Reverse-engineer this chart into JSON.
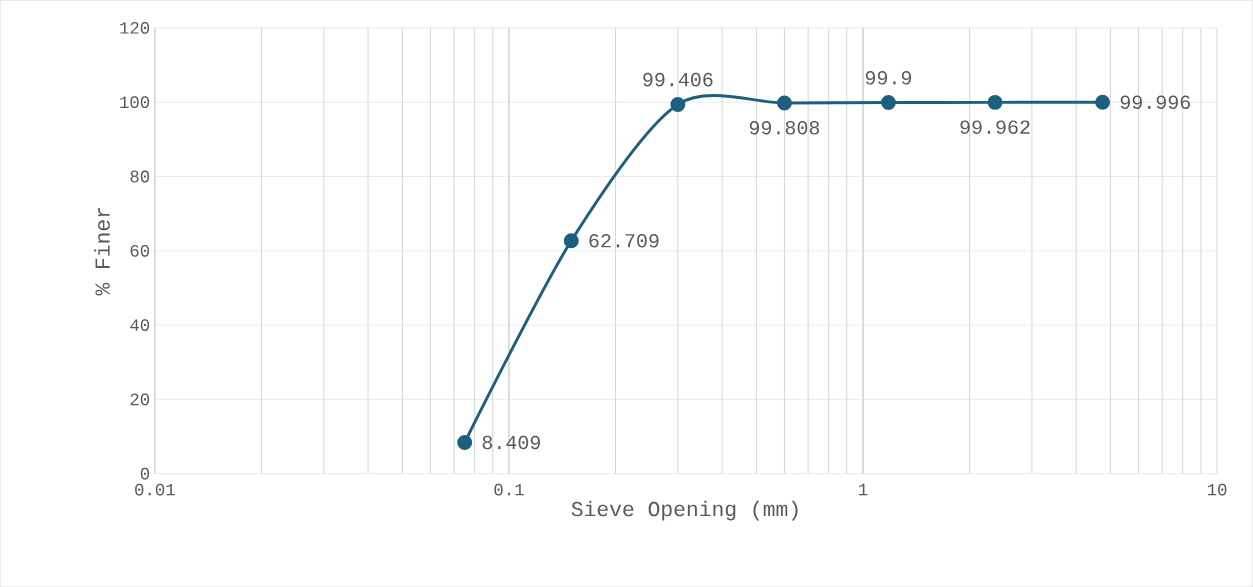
{
  "chart_data": {
    "type": "line",
    "xlabel": "Sieve Opening (mm)",
    "ylabel": "% Finer",
    "x": [
      0.075,
      0.15,
      0.3,
      0.6,
      1.18,
      2.36,
      4.75
    ],
    "series": [
      {
        "color": "#1c5f7f",
        "values": [
          8.409,
          62.709,
          99.406,
          99.808,
          99.9,
          99.962,
          99.996
        ]
      }
    ],
    "xlim": [
      0.01,
      10
    ],
    "xticks": [
      0.01,
      0.1,
      1,
      10
    ],
    "ylim": [
      0,
      120
    ],
    "yticks": [
      0,
      20,
      40,
      60,
      80,
      100,
      120
    ],
    "log": "x",
    "grid": true,
    "marker": "circle",
    "line_style": "solid",
    "data_labels": true
  }
}
